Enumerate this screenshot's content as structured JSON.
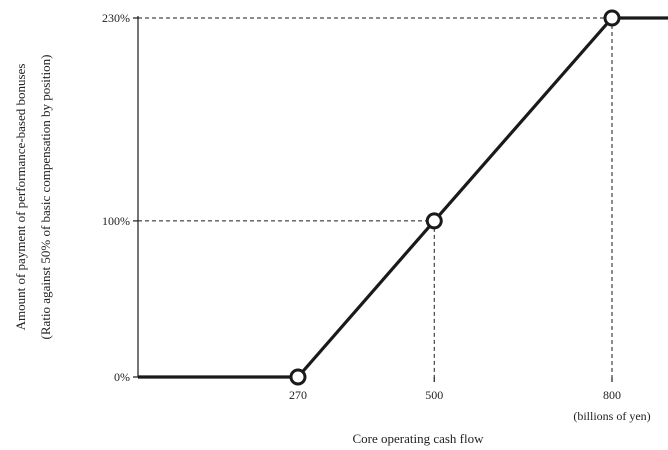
{
  "chart_data": {
    "type": "line",
    "title": "",
    "xlabel": "Core operating cash flow",
    "xunit": "(billions of yen)",
    "ylabel_line1": "Amount of payment of performance-based bonuses",
    "ylabel_line2": "(Ratio against 50% of basic compensation by position)",
    "xlim": [
      0,
      900
    ],
    "ylim": [
      0,
      230
    ],
    "x_ticks": [
      270,
      500,
      800
    ],
    "x_tick_labels": [
      "270",
      "500",
      "800"
    ],
    "y_ticks": [
      0,
      100,
      230
    ],
    "y_tick_labels": [
      "0%",
      "100%",
      "230%"
    ],
    "series": [
      {
        "x": [
          0,
          270,
          500,
          800,
          900
        ],
        "y": [
          0,
          0,
          100,
          230,
          230
        ]
      }
    ],
    "markers": [
      {
        "x": 270,
        "y": 0
      },
      {
        "x": 500,
        "y": 100
      },
      {
        "x": 800,
        "y": 230
      }
    ],
    "reference_lines": [
      {
        "x": 500,
        "y": 100
      },
      {
        "x": 800,
        "y": 230
      }
    ],
    "grid": false,
    "colors": {
      "line": "#1a1a1a",
      "marker_fill": "#ffffff",
      "text": "#222222"
    }
  }
}
